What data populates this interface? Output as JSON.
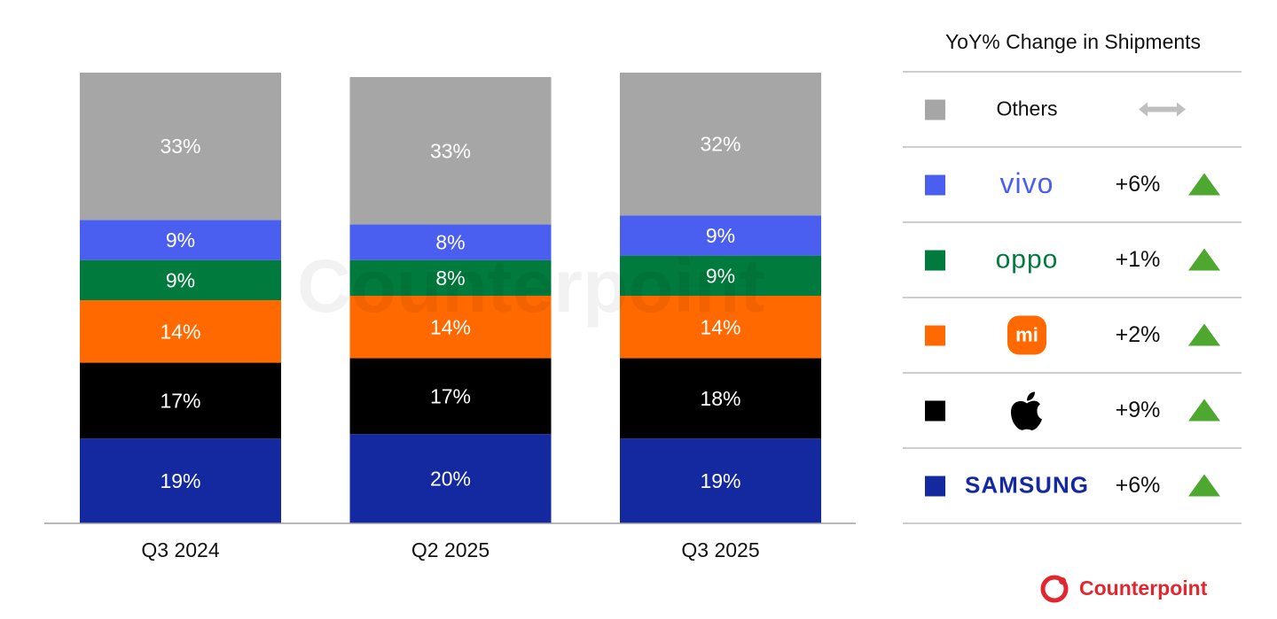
{
  "chart_data": {
    "type": "stacked_bar",
    "categories": [
      "Q3 2024",
      "Q2 2025",
      "Q3 2025"
    ],
    "series": [
      {
        "name": "SAMSUNG",
        "color": "#1428a0",
        "values": [
          19,
          20,
          19
        ],
        "value_labels": [
          "19%",
          "20%",
          "19%"
        ],
        "yoy": 6,
        "yoy_label": "+6%"
      },
      {
        "name": null,
        "color": "#000000",
        "values": [
          17,
          17,
          18
        ],
        "value_labels": [
          "17%",
          "17%",
          "18%"
        ],
        "yoy": 9,
        "yoy_label": "+9%"
      },
      {
        "name": "mi",
        "color": "#ff6900",
        "values": [
          14,
          14,
          14
        ],
        "value_labels": [
          "14%",
          "14%",
          "14%"
        ],
        "yoy": 2,
        "yoy_label": "+2%"
      },
      {
        "name": "oppo",
        "color": "#007a3d",
        "values": [
          9,
          8,
          9
        ],
        "value_labels": [
          "9%",
          "8%",
          "9%"
        ],
        "yoy": 1,
        "yoy_label": "+1%"
      },
      {
        "name": "vivo",
        "color": "#4a5ff0",
        "values": [
          9,
          8,
          9
        ],
        "value_labels": [
          "9%",
          "8%",
          "9%"
        ],
        "yoy": 6,
        "yoy_label": "+6%"
      },
      {
        "name": "Others",
        "color": "#a6a6a6",
        "values": [
          33,
          33,
          32
        ],
        "value_labels": [
          "33%",
          "33%",
          "32%"
        ],
        "yoy": null,
        "yoy_label": null
      }
    ],
    "legend_title": "YoY% Change in Shipments",
    "source": "Counterpoint"
  }
}
